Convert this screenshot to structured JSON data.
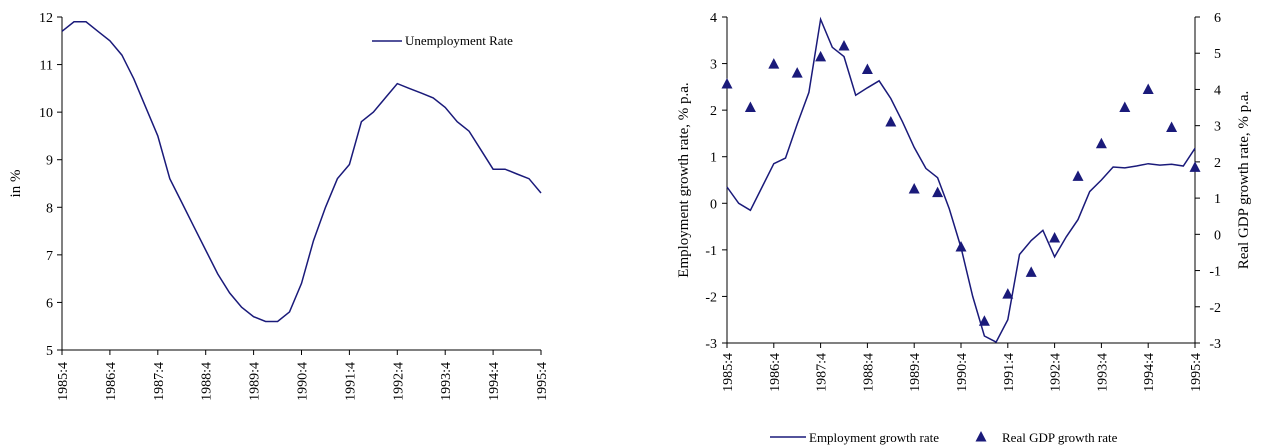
{
  "colors": {
    "series": "#1a1a7a",
    "axis": "#000000"
  },
  "chart_data": [
    {
      "type": "line",
      "ylabel": "in %",
      "ylim": [
        5,
        12
      ],
      "yticks": [
        5,
        6,
        7,
        8,
        9,
        10,
        11,
        12
      ],
      "xlim": [
        0,
        40
      ],
      "xtick_labels": [
        "1985:4",
        "1986:4",
        "1987:4",
        "1988:4",
        "1989:4",
        "1990:4",
        "1991:4",
        "1992:4",
        "1993:4",
        "1994:4",
        "1995:4"
      ],
      "legend": "top-right",
      "series": [
        {
          "name": "Unemployment Rate",
          "x": [
            0,
            1,
            2,
            3,
            4,
            5,
            6,
            7,
            8,
            9,
            10,
            11,
            12,
            13,
            14,
            15,
            16,
            17,
            18,
            19,
            20,
            21,
            22,
            23,
            24,
            25,
            26,
            27,
            28,
            29,
            30,
            31,
            32,
            33,
            34,
            35,
            36,
            37,
            38,
            39,
            40
          ],
          "values": [
            11.7,
            11.9,
            11.9,
            11.7,
            11.5,
            11.2,
            10.7,
            10.1,
            9.5,
            8.6,
            8.1,
            7.6,
            7.1,
            6.6,
            6.2,
            5.9,
            5.7,
            5.6,
            5.6,
            5.8,
            6.4,
            7.3,
            8.0,
            8.6,
            8.9,
            9.8,
            10.0,
            10.3,
            10.6,
            10.5,
            10.4,
            10.3,
            10.1,
            9.8,
            9.6,
            9.2,
            8.8,
            8.8,
            8.7,
            8.6,
            8.3
          ]
        }
      ]
    },
    {
      "type": "line",
      "ylabel": "Employment growth rate, % p.a.",
      "y2label": "Real GDP growth rate, % p.a.",
      "ylim": [
        -3,
        4
      ],
      "yticks": [
        -3,
        -2,
        -1,
        0,
        1,
        2,
        3,
        4
      ],
      "y2lim": [
        -3,
        6
      ],
      "y2ticks": [
        -3,
        -2,
        -1,
        0,
        1,
        2,
        3,
        4,
        5,
        6
      ],
      "xlim": [
        0,
        40
      ],
      "xtick_labels": [
        "1985:4",
        "1986:4",
        "1987:4",
        "1988:4",
        "1989:4",
        "1990:4",
        "1991:4",
        "1992:4",
        "1993:4",
        "1994:4",
        "1995:4"
      ],
      "legend": "bottom",
      "series": [
        {
          "name": "Employment growth rate",
          "axis": "left",
          "x": [
            0,
            1,
            2,
            3,
            4,
            5,
            6,
            7,
            8,
            9,
            10,
            11,
            12,
            13,
            14,
            15,
            16,
            17,
            18,
            19,
            20,
            21,
            22,
            23,
            24,
            25,
            26,
            27,
            28,
            29,
            30,
            31,
            32,
            33,
            34,
            35,
            36,
            37,
            38,
            39,
            40
          ],
          "values": [
            0.35,
            0.0,
            -0.15,
            0.35,
            0.85,
            0.97,
            1.7,
            2.38,
            3.95,
            3.35,
            3.15,
            2.32,
            2.48,
            2.63,
            2.25,
            1.75,
            1.2,
            0.75,
            0.55,
            -0.12,
            -0.95,
            -2.0,
            -2.85,
            -2.98,
            -2.5,
            -1.1,
            -0.8,
            -0.58,
            -1.15,
            -0.72,
            -0.35,
            0.25,
            0.5,
            0.78,
            0.76,
            0.8,
            0.85,
            0.82,
            0.84,
            0.8,
            1.18
          ]
        },
        {
          "name": "Real GDP growth rate",
          "axis": "right",
          "x": [
            0,
            2,
            4,
            6,
            8,
            10,
            12,
            14,
            16,
            18,
            20,
            22,
            24,
            26,
            28,
            30,
            32,
            34,
            36,
            38,
            40
          ],
          "values": [
            4.15,
            3.5,
            4.7,
            4.45,
            4.9,
            5.2,
            4.55,
            3.1,
            1.25,
            1.15,
            -0.35,
            -2.4,
            -1.65,
            -1.05,
            -0.1,
            1.6,
            2.5,
            3.5,
            4.0,
            2.95,
            1.85
          ]
        }
      ]
    }
  ]
}
